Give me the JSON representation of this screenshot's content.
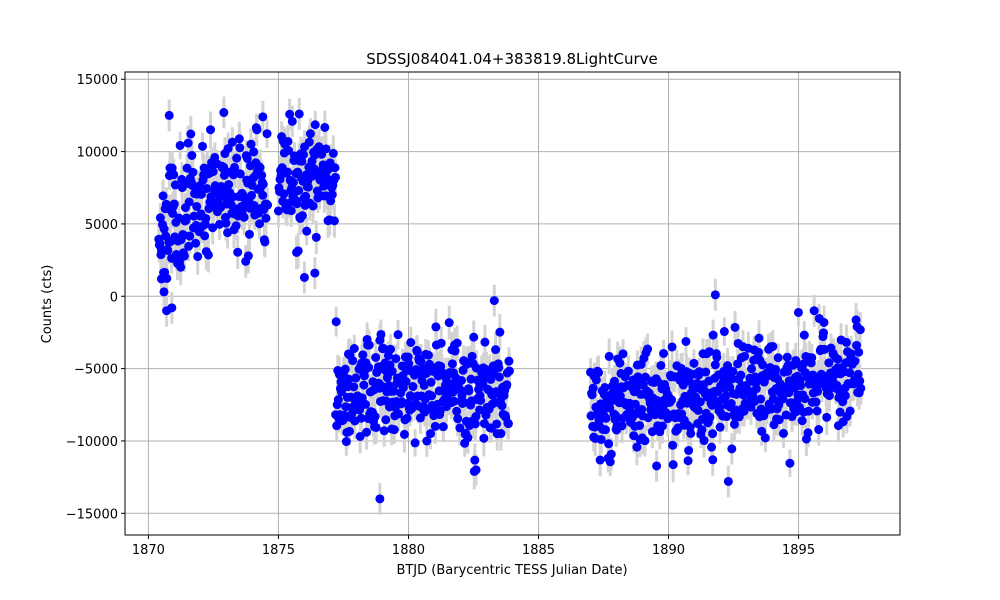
{
  "chart_data": {
    "type": "scatter",
    "title": "SDSSJ084041.04+383819.8LightCurve",
    "xlabel": "BTJD (Barycentric TESS Julian Date)",
    "ylabel": "Counts (cts)",
    "xlim": [
      1869.1,
      1898.9
    ],
    "ylim": [
      -16500,
      15500
    ],
    "xticks": [
      1870,
      1875,
      1880,
      1885,
      1890,
      1895
    ],
    "yticks": [
      -15000,
      -10000,
      -5000,
      0,
      5000,
      10000,
      15000
    ],
    "ytick_labels": [
      "−15000",
      "−10000",
      "−5000",
      "0",
      "5000",
      "10000",
      "15000"
    ],
    "grid": true,
    "colors": {
      "point": "#0000ff",
      "errorbar": "#d3d3d3",
      "grid": "#b0b0b0"
    },
    "series": [
      {
        "segments": [
          {
            "x_start": 1870.4,
            "x_end": 1874.6,
            "levels": [
              [
                0,
                4500
              ],
              [
                0.15,
                5500
              ],
              [
                0.5,
                7800
              ],
              [
                1,
                7200
              ]
            ],
            "scatter": 2000,
            "error": 1100,
            "step": 0.0205,
            "seed": 11
          },
          {
            "x_start": 1875.0,
            "x_end": 1877.2,
            "levels": [
              [
                0,
                8000
              ],
              [
                1,
                7600
              ]
            ],
            "scatter": 1900,
            "error": 1100,
            "step": 0.0205,
            "seed": 23
          },
          {
            "x_start": 1877.2,
            "x_end": 1883.9,
            "levels": [
              [
                0,
                -6200
              ],
              [
                1,
                -6600
              ]
            ],
            "scatter": 1800,
            "error": 1100,
            "step": 0.0205,
            "seed": 37
          },
          {
            "x_start": 1887.0,
            "x_end": 1897.4,
            "levels": [
              [
                0,
                -7800
              ],
              [
                0.5,
                -6600
              ],
              [
                1,
                -5600
              ]
            ],
            "scatter": 1800,
            "error": 1100,
            "step": 0.0205,
            "seed": 53
          }
        ],
        "extra_points": [
          [
            1870.5,
            1200
          ],
          [
            1870.6,
            300
          ],
          [
            1870.7,
            -1000
          ],
          [
            1870.9,
            -800
          ],
          [
            1870.8,
            12500
          ],
          [
            1872.9,
            12700
          ],
          [
            1874.4,
            12400
          ],
          [
            1875.8,
            12600
          ],
          [
            1876.0,
            1300
          ],
          [
            1876.4,
            1600
          ],
          [
            1878.9,
            -14000
          ],
          [
            1882.6,
            -12000
          ],
          [
            1883.3,
            -300
          ],
          [
            1891.8,
            100
          ],
          [
            1892.3,
            -12800
          ],
          [
            1891.7,
            -11300
          ],
          [
            1895.6,
            -1000
          ]
        ]
      }
    ]
  }
}
